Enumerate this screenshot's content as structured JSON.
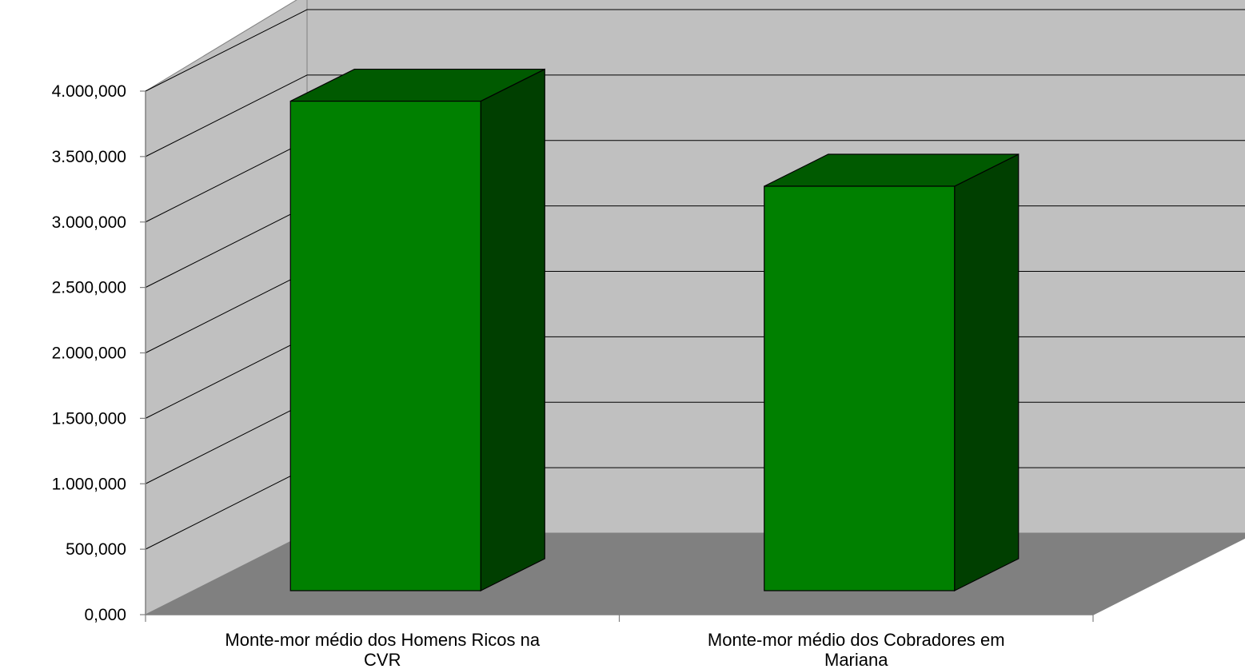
{
  "chart_data": {
    "type": "bar",
    "style": "3d-column",
    "categories": [
      [
        "Monte-mor médio dos Homens Ricos na",
        "CVR"
      ],
      [
        "Monte-mor médio dos Cobradores em",
        "Mariana"
      ]
    ],
    "values": [
      3740000,
      3090000
    ],
    "ylim": [
      0,
      4000000
    ],
    "yticks": [
      0,
      500000,
      1000000,
      1500000,
      2000000,
      2500000,
      3000000,
      3500000,
      4000000
    ],
    "ytick_labels": [
      "0,000",
      "500,000",
      "1.000,000",
      "1.500,000",
      "2.000,000",
      "2.500,000",
      "3.000,000",
      "3.500,000",
      "4.000,000"
    ],
    "grid": true,
    "legend": "none",
    "colors": {
      "bar_front": "#008000",
      "bar_top": "#005a00",
      "bar_side": "#003f00",
      "back_wall": "#c0c0c0",
      "floor": "#808080",
      "gridline": "#000000"
    }
  }
}
